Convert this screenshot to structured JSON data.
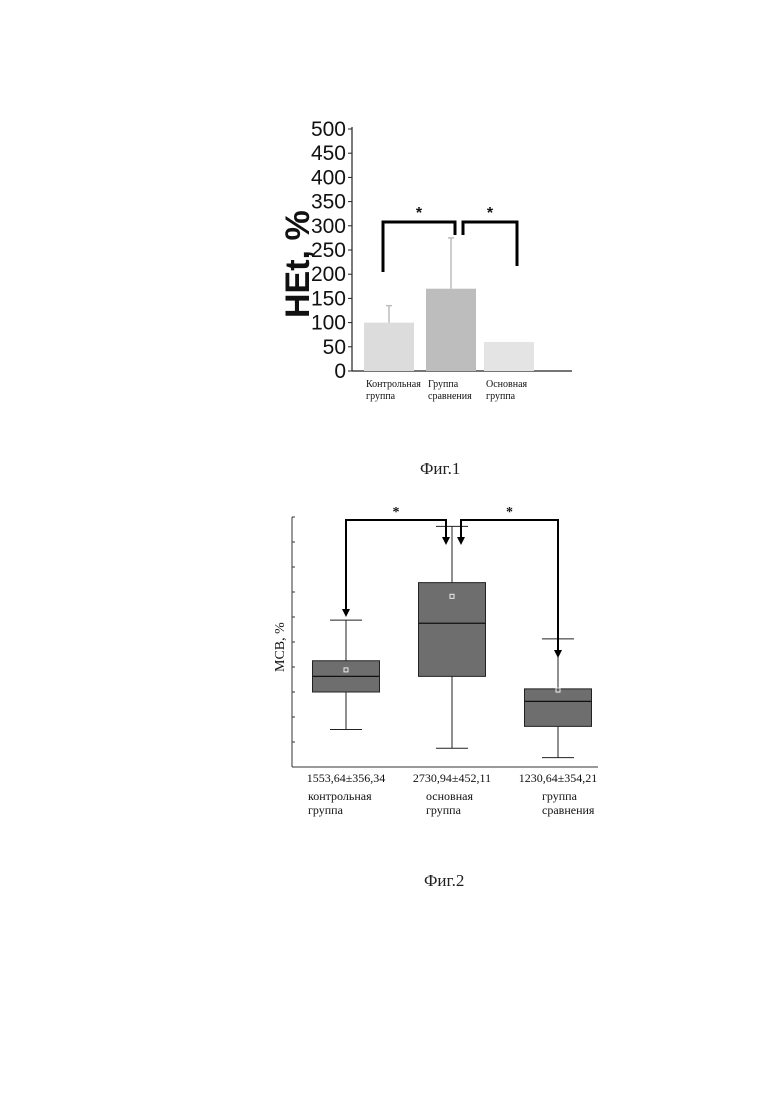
{
  "figures": [
    {
      "caption": "Фиг.1",
      "chart_data": {
        "type": "bar",
        "ylabel": "HEt, %",
        "ylim": [
          0,
          500
        ],
        "yticks": [
          0,
          50,
          100,
          150,
          200,
          250,
          300,
          350,
          400,
          450,
          500
        ],
        "categories": [
          [
            "Контрольная",
            "группа"
          ],
          [
            "Группа",
            "сравнения"
          ],
          [
            "Основная",
            "группа"
          ]
        ],
        "values": [
          100,
          170,
          60
        ],
        "errors": [
          35,
          105,
          0
        ],
        "colors": [
          "#dcdcdc",
          "#bdbdbd",
          "#e4e4e4"
        ],
        "significance": [
          {
            "from": 0,
            "to": 1,
            "label": "*"
          },
          {
            "from": 1,
            "to": 2,
            "label": "*"
          }
        ]
      }
    },
    {
      "caption": "Фиг.2",
      "chart_data": {
        "type": "box",
        "ylabel": "МСВ, %",
        "categories": [
          [
            "контрольная",
            "группа"
          ],
          [
            "основная",
            "группа"
          ],
          [
            "группа",
            "сравнения"
          ]
        ],
        "value_labels": [
          "1553,64±356,34",
          "2730,94±452,11",
          "1230,64±354,21"
        ],
        "boxes": [
          {
            "min": 600,
            "q1": 1200,
            "median": 1450,
            "q3": 1700,
            "max": 2350,
            "mean": 1553.64
          },
          {
            "min": 300,
            "q1": 1450,
            "median": 2300,
            "q3": 2950,
            "max": 3850,
            "mean": 2730.94
          },
          {
            "min": 150,
            "q1": 650,
            "median": 1050,
            "q3": 1250,
            "max": 2050,
            "mean": 1230.64
          }
        ],
        "ylim": [
          0,
          4000
        ],
        "box_color": "#6e6e6e",
        "significance": [
          {
            "from": 0,
            "to": 1,
            "label": "*"
          },
          {
            "from": 1,
            "to": 2,
            "label": "*"
          }
        ]
      }
    }
  ]
}
